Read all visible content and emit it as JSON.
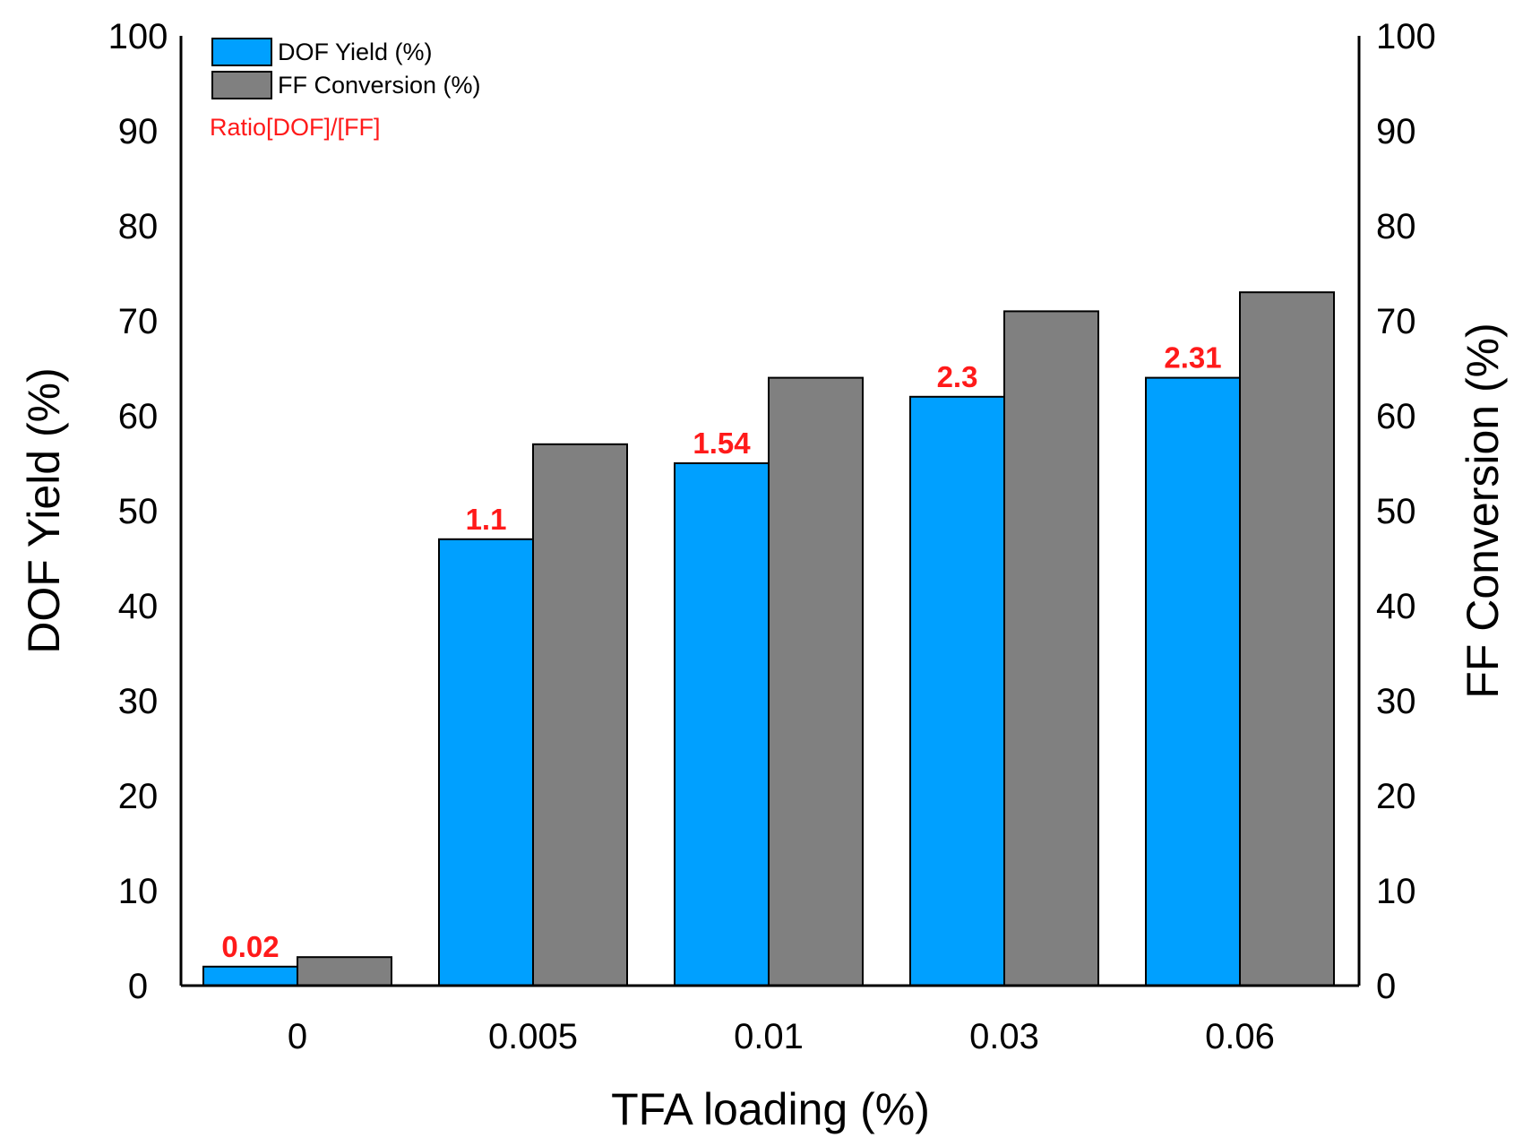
{
  "chart_data": {
    "type": "bar",
    "title": "",
    "xlabel": "TFA loading (%)",
    "ylabel": "DOF Yield (%)",
    "y2label": "FF Conversion (%)",
    "ylim": [
      0,
      100
    ],
    "y2lim": [
      0,
      100
    ],
    "yticks": [
      "0",
      "10",
      "20",
      "30",
      "40",
      "50",
      "60",
      "70",
      "80",
      "90",
      "100"
    ],
    "categories": [
      "0",
      "0.005",
      "0.01",
      "0.03",
      "0.06"
    ],
    "series": [
      {
        "name": "DOF Yield (%)",
        "axis": "left",
        "color": "#00a0ff",
        "values": [
          2,
          47,
          55,
          62,
          64
        ]
      },
      {
        "name": "FF Conversion (%)",
        "axis": "right",
        "color": "#808080",
        "values": [
          3,
          57,
          64,
          71,
          73
        ]
      }
    ],
    "annotations": {
      "title": "Ratio[DOF]/[FF]",
      "color": "#ff1a1a",
      "values": [
        "0.02",
        "1.1",
        "1.54",
        "2.3",
        "2.31"
      ]
    },
    "legend_position": "top-left",
    "grid": false
  }
}
